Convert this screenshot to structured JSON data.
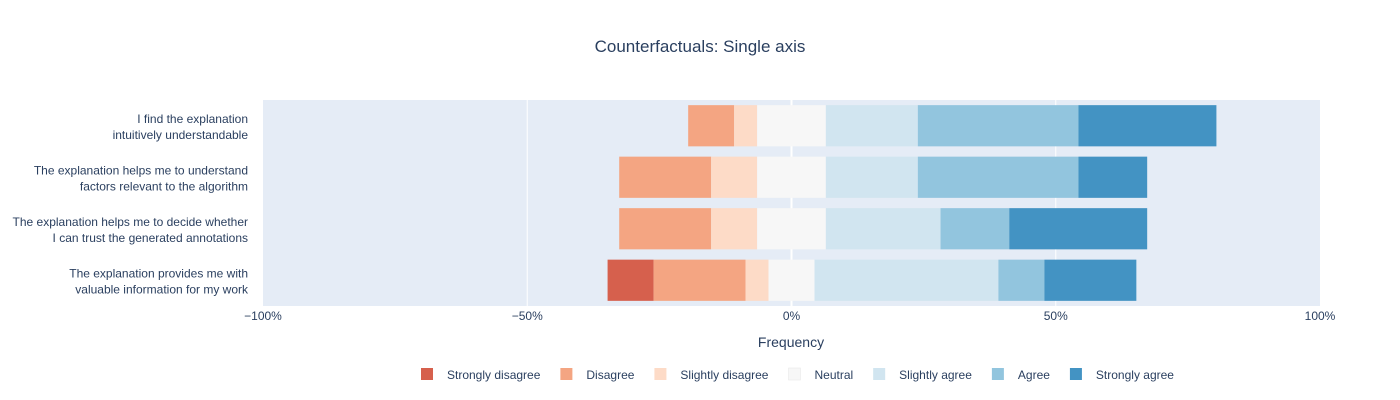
{
  "chart_data": {
    "type": "bar",
    "orientation": "horizontal",
    "barmode": "diverging-stacked",
    "title": "Counterfactuals: Single axis",
    "xlabel": "Frequency",
    "ylabel": "",
    "xlim": [
      -100,
      100
    ],
    "xticks": [
      {
        "value": -100,
        "label": "−100%"
      },
      {
        "value": -50,
        "label": "−50%"
      },
      {
        "value": 0,
        "label": "0%"
      },
      {
        "value": 50,
        "label": "50%"
      },
      {
        "value": 100,
        "label": "100%"
      }
    ],
    "grid": true,
    "legend_position": "bottom",
    "categories": [
      "I find the explanation|intuitively understandable",
      "The explanation helps me to understand|factors relevant to the algorithm",
      "The explanation helps me to decide whether|I can trust the generated annotations",
      "The explanation provides me with|valuable information for my work"
    ],
    "series": [
      {
        "name": "Strongly disagree",
        "color": "#d6604d",
        "values": [
          0,
          0,
          0,
          8.7
        ]
      },
      {
        "name": "Disagree",
        "color": "#f4a582",
        "values": [
          8.7,
          17.4,
          17.4,
          17.4
        ]
      },
      {
        "name": "Slightly disagree",
        "color": "#fddbc7",
        "values": [
          4.35,
          8.7,
          8.7,
          4.35
        ]
      },
      {
        "name": "Neutral",
        "color": "#f7f7f7",
        "values": [
          13,
          13,
          13,
          8.7
        ]
      },
      {
        "name": "Slightly agree",
        "color": "#d1e5f0",
        "values": [
          17.4,
          17.4,
          21.7,
          34.8
        ]
      },
      {
        "name": "Agree",
        "color": "#92c5de",
        "values": [
          30.4,
          30.4,
          13,
          8.7
        ]
      },
      {
        "name": "Strongly agree",
        "color": "#4393c3",
        "values": [
          26.1,
          13,
          26.1,
          17.4
        ]
      }
    ]
  }
}
